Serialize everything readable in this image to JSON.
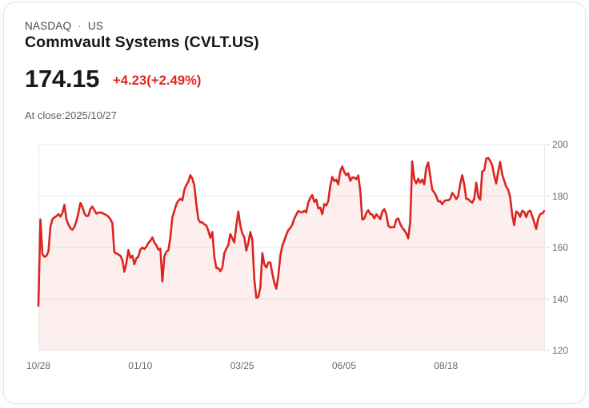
{
  "header": {
    "exchange": "NASDAQ",
    "separator": "·",
    "region": "US",
    "title": "Commvault Systems (CVLT.US)"
  },
  "quote": {
    "price": "174.15",
    "change": "+4.23(+2.49%)",
    "as_of": "At close:2025/10/27"
  },
  "colors": {
    "line": "#db2521",
    "fill": "rgba(219,37,33,0.075)",
    "change_text": "#e0241e",
    "grid": "#ebedf0",
    "plot_border": "#e6e8ec",
    "axis_text": "#686c71"
  },
  "chart_data": {
    "type": "area",
    "title": "CVLT.US one-year daily closing price",
    "x_tick_labels": [
      "10/28",
      "01/10",
      "03/25",
      "06/05",
      "08/18"
    ],
    "y_ticks": [
      120,
      140,
      160,
      180,
      200
    ],
    "ylim": [
      120,
      200
    ],
    "grid": true,
    "legend": "none",
    "last_price": 174.15,
    "values": [
      137.4,
      170.9,
      157.5,
      156.4,
      156.7,
      158.5,
      168,
      171,
      171.7,
      172.2,
      173,
      172,
      173.5,
      176.6,
      171,
      168.9,
      167.5,
      166.9,
      168,
      170.3,
      173.5,
      177.3,
      175.8,
      173.2,
      172.2,
      172.4,
      174.9,
      175.9,
      174.5,
      173.2,
      173.5,
      173.6,
      173.4,
      173,
      172.6,
      172,
      171,
      169.5,
      158.2,
      157.7,
      157.3,
      156.8,
      155.2,
      150.6,
      153.9,
      159,
      156,
      156.8,
      153.5,
      155.8,
      156.5,
      159.2,
      160,
      159.4,
      160.3,
      161.8,
      162.6,
      163.9,
      162,
      160.8,
      159.2,
      159.5,
      146.8,
      156.5,
      158.4,
      158.9,
      164,
      171.8,
      174.2,
      176.8,
      178.2,
      178.9,
      178.3,
      182.5,
      184.3,
      185.6,
      188.1,
      186.8,
      184.2,
      177,
      171,
      169.8,
      169.8,
      169,
      168.6,
      166.5,
      163.8,
      166,
      156.5,
      152,
      152,
      150.8,
      152.2,
      157.8,
      159.5,
      161,
      165.2,
      163.6,
      162,
      168.5,
      174,
      168.5,
      165.5,
      164,
      158.8,
      161.8,
      166,
      163,
      147.5,
      140.5,
      140.8,
      144.5,
      157.8,
      153.5,
      152.2,
      154.2,
      154.2,
      150,
      146.3,
      144,
      149,
      156.8,
      160.7,
      162.8,
      165,
      166.8,
      167.6,
      168.9,
      171.2,
      172.8,
      174.2,
      173.8,
      173.6,
      174.3,
      173.6,
      177.5,
      179.2,
      180.4,
      177.7,
      178.6,
      175.2,
      175.5,
      173,
      176.9,
      176.3,
      178,
      184,
      187.4,
      185.8,
      186.4,
      184.5,
      189.6,
      191.5,
      189.3,
      188.1,
      188.8,
      185.9,
      187.2,
      187.2,
      186.5,
      188,
      182,
      170.8,
      171.3,
      173.3,
      174.5,
      173,
      172.8,
      171.3,
      172.9,
      172,
      171,
      174,
      174.9,
      173,
      168.5,
      167.8,
      167.9,
      167.9,
      170.8,
      171.3,
      169.2,
      167.7,
      166.8,
      165.5,
      163.5,
      170,
      193.5,
      186.5,
      184.9,
      186.7,
      185.2,
      186.4,
      184.5,
      191,
      193,
      187.8,
      182.5,
      181.4,
      180,
      177.9,
      178,
      176.8,
      178,
      178.4,
      178.3,
      178.9,
      181.2,
      180.2,
      178.8,
      180,
      184.8,
      188.1,
      184.5,
      178.9,
      178.8,
      178,
      177.4,
      178.9,
      185.2,
      179.8,
      178.5,
      189.5,
      190,
      194.5,
      194.8,
      193.6,
      192,
      188,
      184.8,
      189.5,
      193.2,
      188.5,
      186,
      183.6,
      182.5,
      179.5,
      172.8,
      168.7,
      174,
      173.5,
      171.9,
      174.3,
      173.8,
      171.8,
      173.9,
      174.3,
      172.3,
      169.8,
      167.2,
      171.2,
      173,
      173.2,
      174.15
    ]
  }
}
